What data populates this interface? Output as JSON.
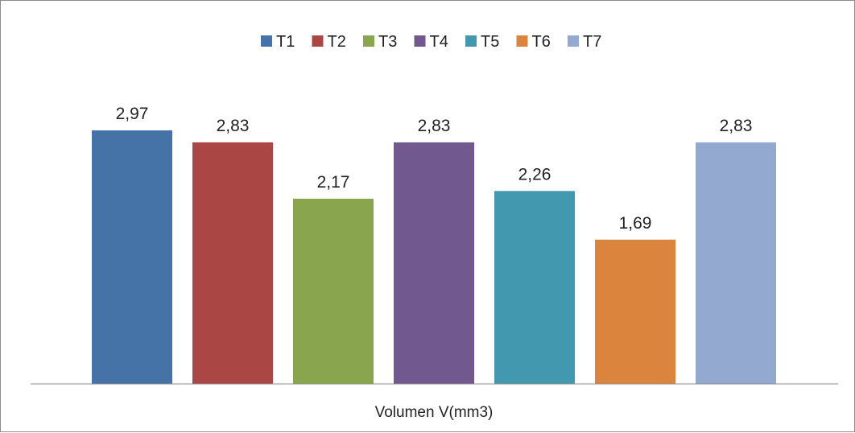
{
  "chart_data": {
    "type": "bar",
    "categories": [
      "T1",
      "T2",
      "T3",
      "T4",
      "T5",
      "T6",
      "T7"
    ],
    "values": [
      2.97,
      2.83,
      2.17,
      2.83,
      2.26,
      1.69,
      2.83
    ],
    "value_labels": [
      "2,97",
      "2,83",
      "2,17",
      "2,83",
      "2,26",
      "1,69",
      "2,83"
    ],
    "colors": [
      "#4572a7",
      "#aa4643",
      "#89a54e",
      "#71588f",
      "#4198af",
      "#db843d",
      "#93a9cf"
    ],
    "legend": [
      "T1",
      "T2",
      "T3",
      "T4",
      "T5",
      "T6",
      "T7"
    ],
    "legend_position": "top",
    "title": "",
    "xlabel": "Volumen V(mm3)",
    "ylabel": "",
    "ylim": [
      0,
      3.5
    ],
    "grid": false,
    "axis_visible": false
  }
}
